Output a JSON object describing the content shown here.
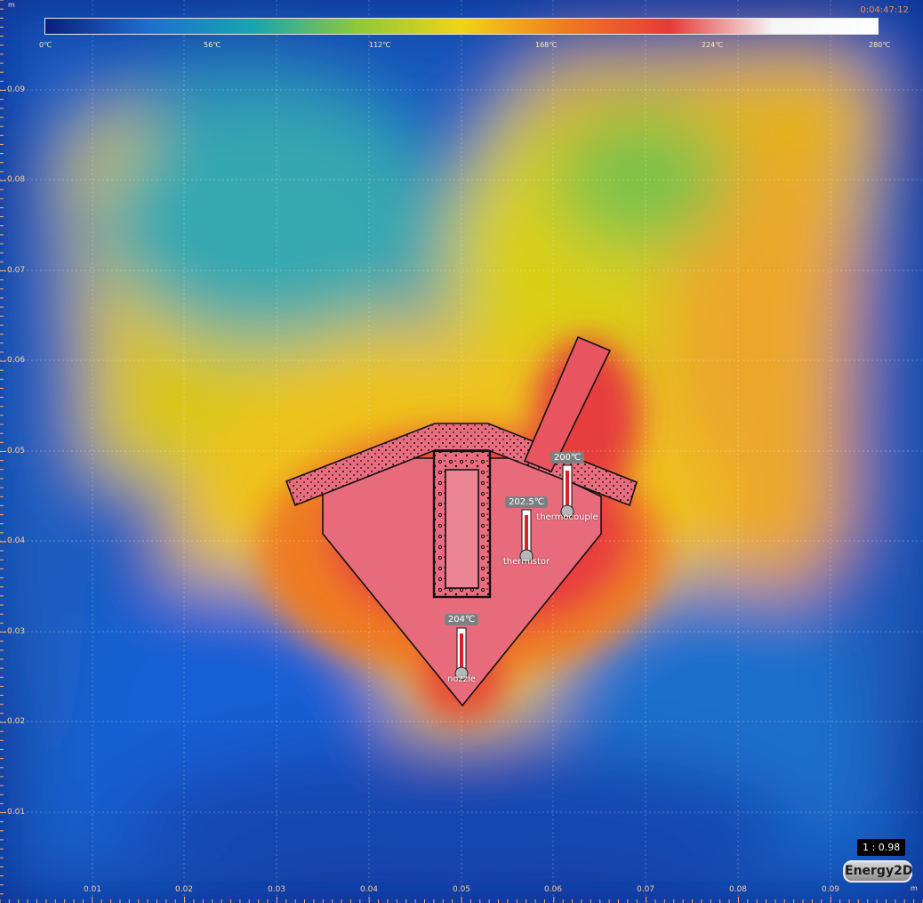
{
  "window": {
    "elapsed_time": "0:04:47:12",
    "scale_ratio": "1 : 0.98",
    "app_logo_text": "Energy2D"
  },
  "colorbar": {
    "stops": [
      "#0a1f7a",
      "#1f6fd0",
      "#18a5b0",
      "#8fc83a",
      "#f0d418",
      "#f07a20",
      "#e63a3a",
      "#f5f5f5",
      "#ffffff"
    ],
    "labels": [
      "0℃",
      "56℃",
      "112℃",
      "168℃",
      "224℃",
      "280℃"
    ]
  },
  "axes": {
    "x_unit": "m",
    "y_unit": "m",
    "x_ticks": [
      "0.01",
      "0.02",
      "0.03",
      "0.04",
      "0.05",
      "0.06",
      "0.07",
      "0.08",
      "0.09"
    ],
    "y_ticks": [
      "0.09",
      "0.08",
      "0.07",
      "0.06",
      "0.05",
      "0.04",
      "0.03",
      "0.02",
      "0.01"
    ]
  },
  "sensors": {
    "nozzle": {
      "label": "nozzle",
      "reading": "204℃"
    },
    "thermistor": {
      "label": "thermistor",
      "reading": "202.5℃"
    },
    "thermocouple": {
      "label": "thermocouple",
      "reading": "200℃"
    }
  },
  "colors": {
    "part_fill": "#e86b7c",
    "outline": "#111111",
    "tick_text": "#ffc890",
    "clock_text": "#e2935a"
  }
}
